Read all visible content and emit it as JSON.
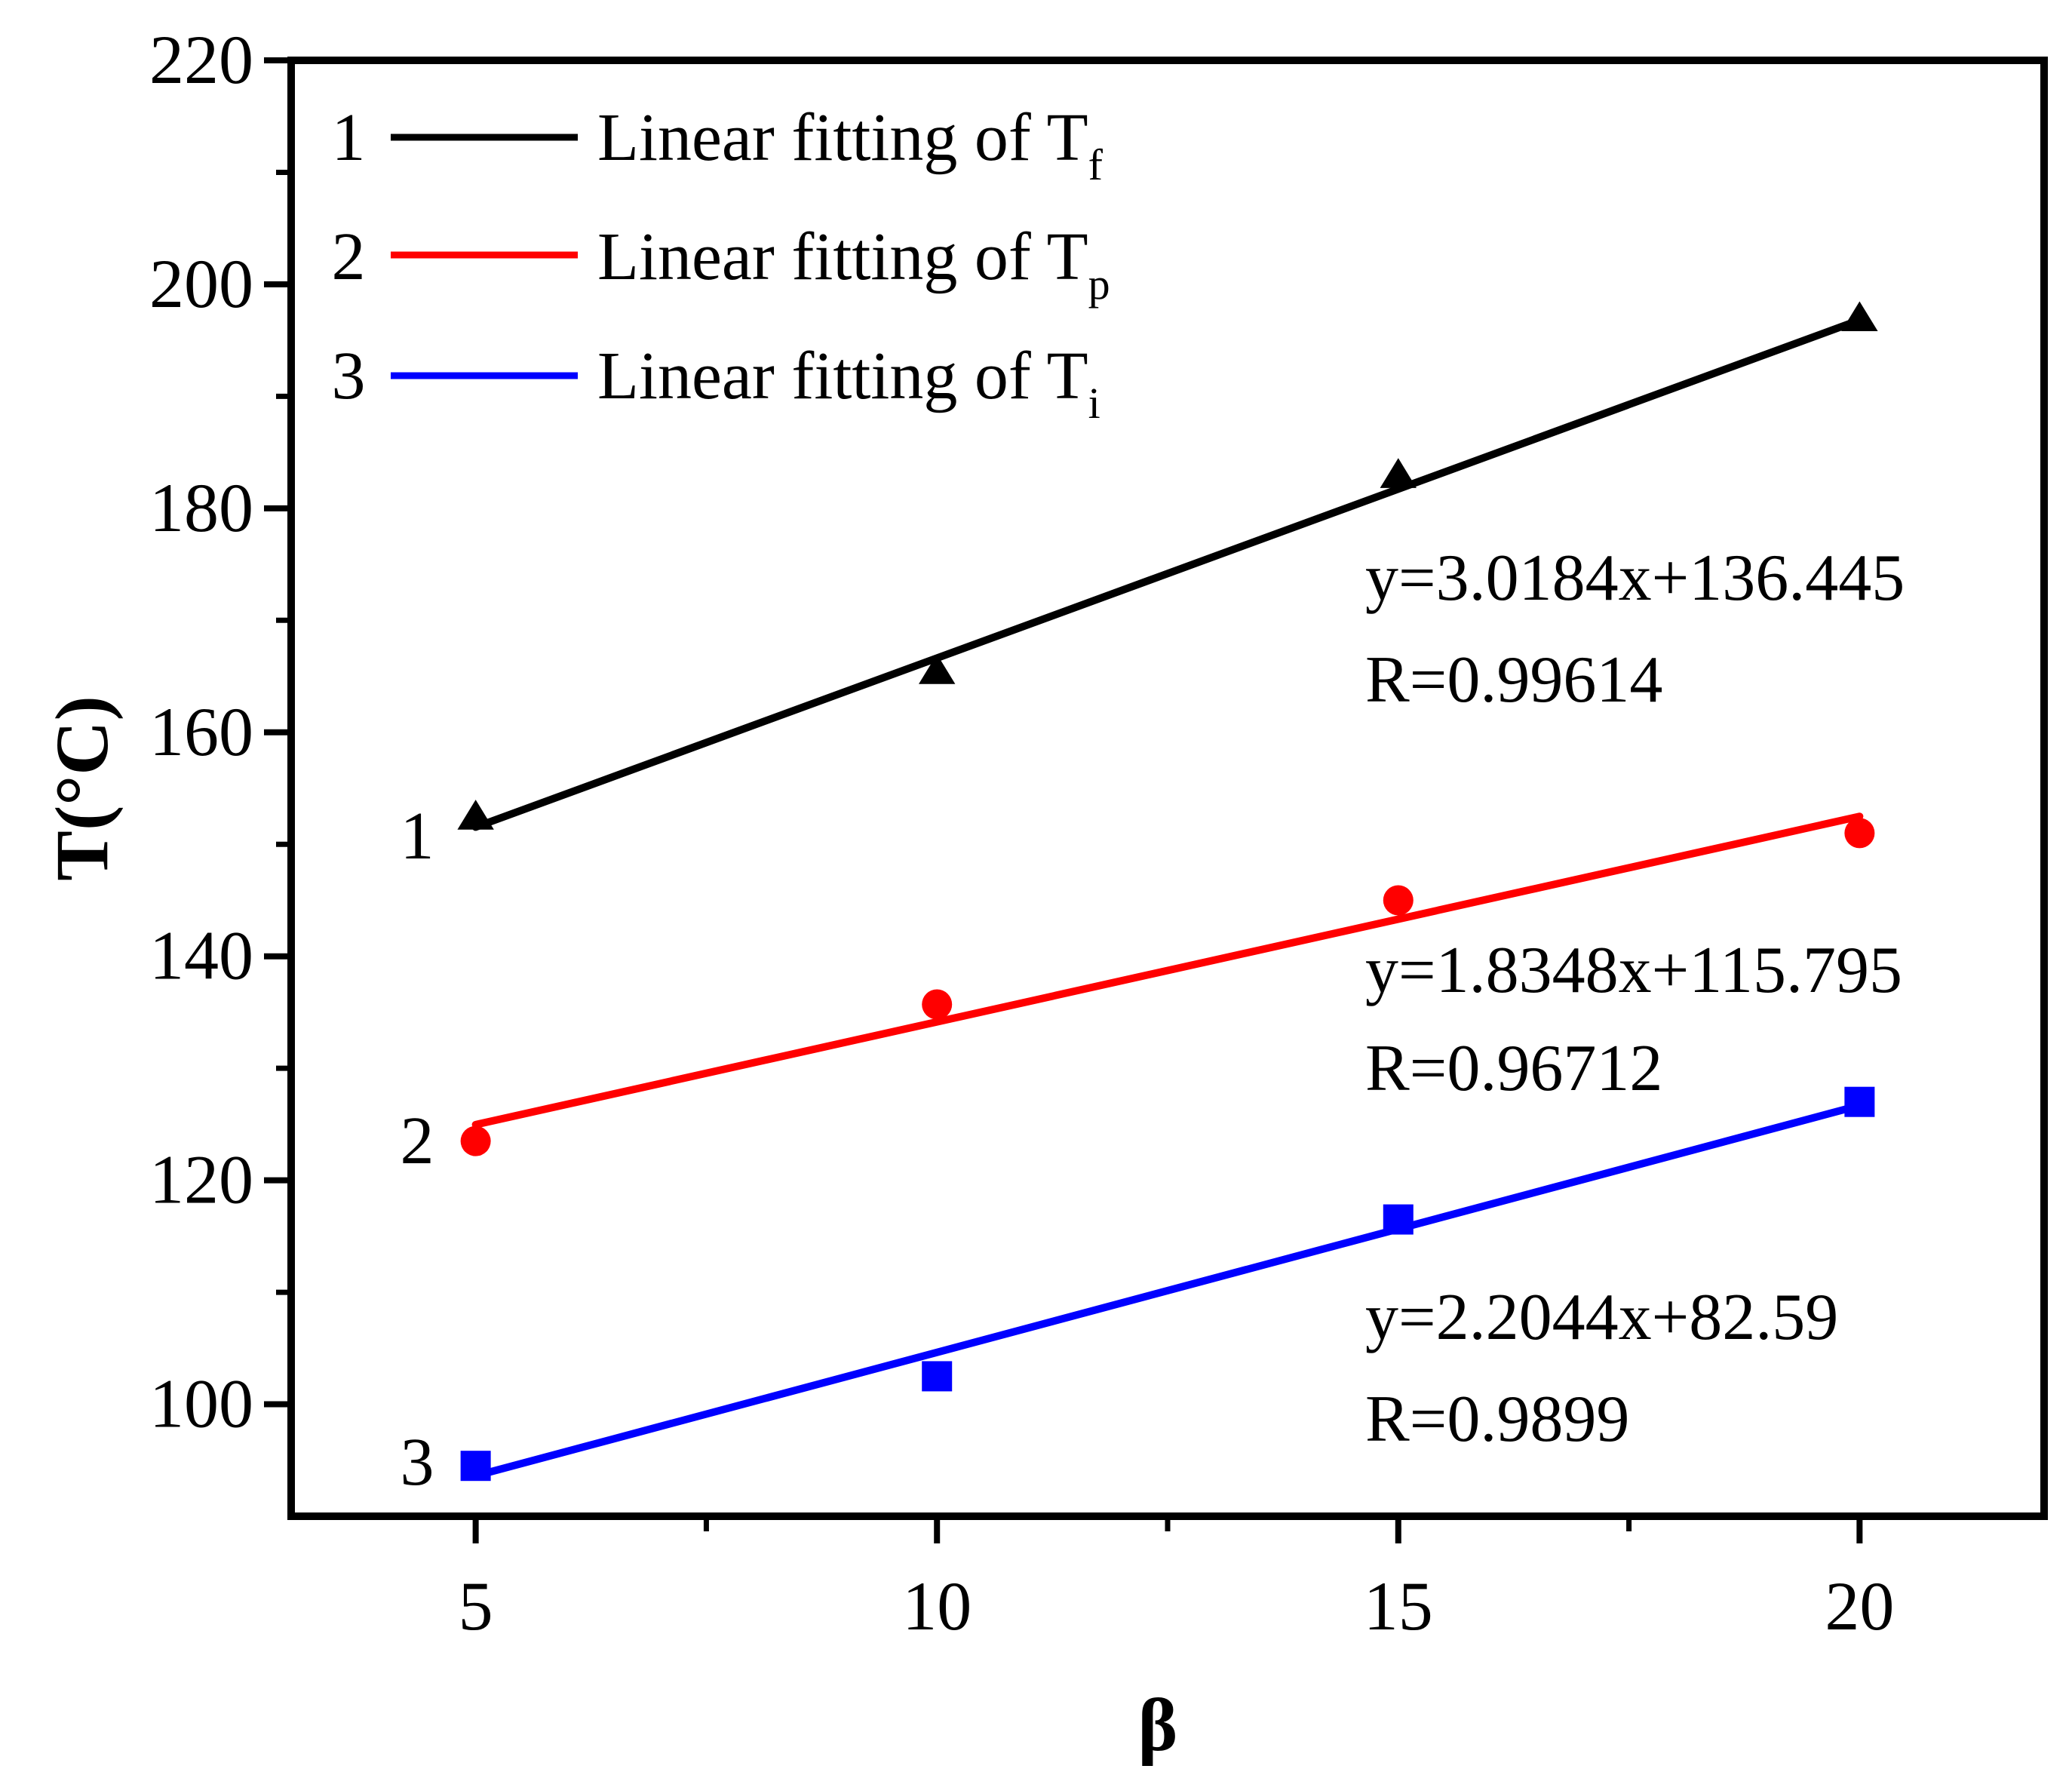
{
  "chart_data": {
    "type": "scatter",
    "xlabel": "β",
    "ylabel": "T(°C)",
    "xlim": [
      3,
      22
    ],
    "ylim": [
      90,
      220
    ],
    "x_ticks": [
      5,
      10,
      15,
      20
    ],
    "x_minor_ticks": [
      7.5,
      12.5,
      17.5
    ],
    "y_ticks": [
      100,
      120,
      140,
      160,
      180,
      200,
      220
    ],
    "y_minor_ticks": [
      110,
      130,
      150,
      170,
      190,
      210
    ],
    "x_tick_labels": [
      "5",
      "10",
      "15",
      "20"
    ],
    "y_tick_labels": [
      "100",
      "120",
      "140",
      "160",
      "180",
      "200",
      "220"
    ],
    "legend_position": "top-left",
    "series": [
      {
        "id": "Tf",
        "number": "1",
        "color": "#000000",
        "marker": "triangle",
        "legend_text": "Linear fitting of T",
        "legend_subscript": "f",
        "x": [
          5,
          10,
          15,
          20
        ],
        "y": [
          152.5,
          165.5,
          183,
          197
        ],
        "fit": {
          "slope": 3.0184,
          "intercept": 136.445
        },
        "equation": "y=3.0184x+136.445",
        "r_text": "R=0.99614"
      },
      {
        "id": "Tp",
        "number": "2",
        "color": "#ff0000",
        "marker": "circle",
        "legend_text": "Linear fitting of T",
        "legend_subscript": "p",
        "x": [
          5,
          10,
          15,
          20
        ],
        "y": [
          123.5,
          135.7,
          145,
          151
        ],
        "fit": {
          "slope": 1.8348,
          "intercept": 115.795
        },
        "equation": "y=1.8348x+115.795",
        "r_text": "R=0.96712"
      },
      {
        "id": "Ti",
        "number": "3",
        "color": "#0000ff",
        "marker": "square",
        "legend_text": "Linear fitting of T",
        "legend_subscript": "i",
        "x": [
          5,
          10,
          15,
          20
        ],
        "y": [
          94.5,
          102.5,
          116.5,
          127
        ],
        "fit": {
          "slope": 2.2044,
          "intercept": 82.59
        },
        "equation": "y=2.2044x+82.59",
        "r_text": "R=0.9899"
      }
    ]
  }
}
